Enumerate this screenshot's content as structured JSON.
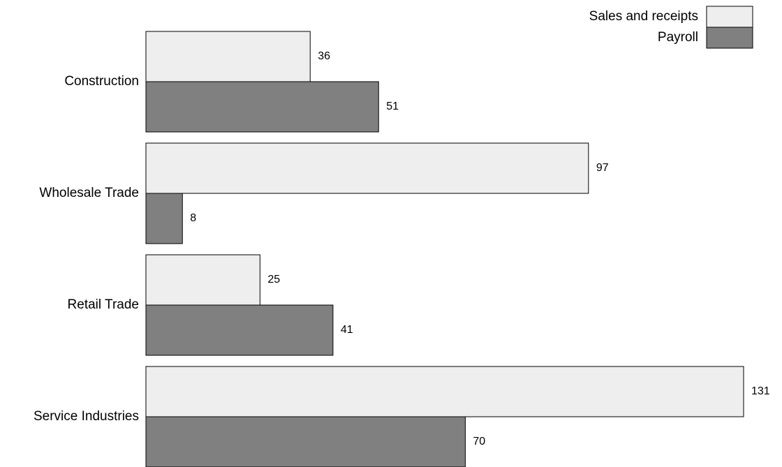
{
  "chart_data": {
    "type": "bar",
    "orientation": "horizontal",
    "categories": [
      "Construction",
      "Wholesale Trade",
      "Retail Trade",
      "Service Industries"
    ],
    "series": [
      {
        "name": "Sales and receipts",
        "values": [
          36,
          97,
          25,
          131
        ],
        "color": "#eeeeee"
      },
      {
        "name": "Payroll",
        "values": [
          51,
          8,
          41,
          70
        ],
        "color": "#808080"
      }
    ],
    "xlim": [
      0,
      131
    ],
    "grid": false,
    "legend": "top-right",
    "data_labels": true
  }
}
